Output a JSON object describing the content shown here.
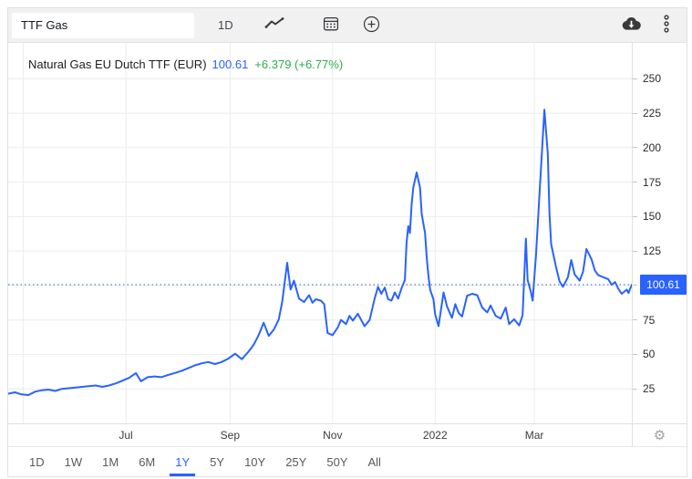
{
  "colors": {
    "accent_blue": "#2962ff",
    "positive_green": "#2eae49",
    "grid": "#ececec",
    "toolbar_bg": "#f1f1f1",
    "border": "#e0e0e0"
  },
  "toolbar": {
    "symbol_value": "TTF Gas",
    "interval_label": "1D",
    "icons": [
      "line-chart",
      "calendar",
      "plus-circle",
      "cloud-download",
      "kebab-menu"
    ]
  },
  "legend": {
    "title": "Natural Gas EU Dutch TTF (EUR)",
    "price": "100.61",
    "change": "+6.379 (+6.77%)"
  },
  "y_axis": {
    "last_price_label": "100.61",
    "tick_labels": [
      "25",
      "50",
      "75",
      "100",
      "125",
      "150",
      "175",
      "200",
      "225",
      "250"
    ]
  },
  "x_axis": {
    "tick_labels": [
      "Jul",
      "Sep",
      "Nov",
      "2022",
      "Mar"
    ]
  },
  "range_selector": {
    "options": [
      "1D",
      "1W",
      "1M",
      "6M",
      "1Y",
      "5Y",
      "10Y",
      "25Y",
      "50Y",
      "All"
    ],
    "active": "1Y"
  },
  "chart_data": {
    "type": "line",
    "title": "Natural Gas EU Dutch TTF (EUR)",
    "last_price": 100.61,
    "change": 6.379,
    "change_pct": 6.77,
    "x_domain": [
      "2021-04-22",
      "2022-04-28"
    ],
    "ylim": [
      0,
      276
    ],
    "y_grid": [
      25,
      50,
      75,
      100,
      125,
      150,
      175,
      200,
      225,
      250
    ],
    "x_ticks": [
      {
        "label": "",
        "date": "2021-05-01"
      },
      {
        "label": "Jul",
        "date": "2021-07-01"
      },
      {
        "label": "Sep",
        "date": "2021-09-01"
      },
      {
        "label": "Nov",
        "date": "2021-11-01"
      },
      {
        "label": "2022",
        "date": "2022-01-01"
      },
      {
        "label": "Mar",
        "date": "2022-03-01"
      }
    ],
    "grid": true,
    "legend_position": "top-left",
    "series": [
      {
        "name": "Natural Gas EU Dutch TTF (EUR)",
        "color": "#2962ff",
        "points": [
          [
            "2021-04-22",
            21.5
          ],
          [
            "2021-04-26",
            22.5
          ],
          [
            "2021-04-30",
            21.0
          ],
          [
            "2021-05-04",
            20.5
          ],
          [
            "2021-05-08",
            23.0
          ],
          [
            "2021-05-12",
            24.0
          ],
          [
            "2021-05-16",
            24.5
          ],
          [
            "2021-05-20",
            23.5
          ],
          [
            "2021-05-24",
            25.0
          ],
          [
            "2021-05-28",
            25.5
          ],
          [
            "2021-06-01",
            26.0
          ],
          [
            "2021-06-05",
            26.5
          ],
          [
            "2021-06-09",
            27.0
          ],
          [
            "2021-06-13",
            27.5
          ],
          [
            "2021-06-17",
            26.5
          ],
          [
            "2021-06-21",
            27.5
          ],
          [
            "2021-06-25",
            29.0
          ],
          [
            "2021-06-29",
            31.0
          ],
          [
            "2021-07-03",
            33.0
          ],
          [
            "2021-07-07",
            36.5
          ],
          [
            "2021-07-10",
            30.5
          ],
          [
            "2021-07-14",
            33.5
          ],
          [
            "2021-07-18",
            34.0
          ],
          [
            "2021-07-22",
            33.5
          ],
          [
            "2021-07-26",
            35.0
          ],
          [
            "2021-07-30",
            36.5
          ],
          [
            "2021-08-03",
            38.0
          ],
          [
            "2021-08-07",
            40.0
          ],
          [
            "2021-08-11",
            42.0
          ],
          [
            "2021-08-15",
            43.5
          ],
          [
            "2021-08-19",
            44.5
          ],
          [
            "2021-08-23",
            43.0
          ],
          [
            "2021-08-27",
            44.5
          ],
          [
            "2021-08-31",
            47.0
          ],
          [
            "2021-09-04",
            50.5
          ],
          [
            "2021-09-08",
            46.5
          ],
          [
            "2021-09-12",
            52.0
          ],
          [
            "2021-09-15",
            57.0
          ],
          [
            "2021-09-18",
            64.0
          ],
          [
            "2021-09-21",
            73.0
          ],
          [
            "2021-09-24",
            63.5
          ],
          [
            "2021-09-27",
            68.0
          ],
          [
            "2021-09-30",
            75.5
          ],
          [
            "2021-10-02",
            88.0
          ],
          [
            "2021-10-05",
            116.5
          ],
          [
            "2021-10-07",
            97.0
          ],
          [
            "2021-10-09",
            103.5
          ],
          [
            "2021-10-12",
            90.5
          ],
          [
            "2021-10-15",
            88.0
          ],
          [
            "2021-10-18",
            93.0
          ],
          [
            "2021-10-20",
            87.5
          ],
          [
            "2021-10-22",
            90.0
          ],
          [
            "2021-10-25",
            89.0
          ],
          [
            "2021-10-27",
            86.5
          ],
          [
            "2021-10-29",
            65.5
          ],
          [
            "2021-11-01",
            64.0
          ],
          [
            "2021-11-04",
            69.5
          ],
          [
            "2021-11-06",
            75.0
          ],
          [
            "2021-11-09",
            72.0
          ],
          [
            "2021-11-11",
            78.0
          ],
          [
            "2021-11-13",
            74.5
          ],
          [
            "2021-11-16",
            79.5
          ],
          [
            "2021-11-18",
            75.0
          ],
          [
            "2021-11-20",
            70.5
          ],
          [
            "2021-11-23",
            75.0
          ],
          [
            "2021-11-26",
            90.5
          ],
          [
            "2021-11-28",
            99.0
          ],
          [
            "2021-11-30",
            94.0
          ],
          [
            "2021-12-02",
            98.5
          ],
          [
            "2021-12-04",
            90.0
          ],
          [
            "2021-12-06",
            89.0
          ],
          [
            "2021-12-08",
            95.0
          ],
          [
            "2021-12-10",
            90.5
          ],
          [
            "2021-12-12",
            98.0
          ],
          [
            "2021-12-14",
            104.0
          ],
          [
            "2021-12-15",
            131.0
          ],
          [
            "2021-12-16",
            143.0
          ],
          [
            "2021-12-17",
            138.0
          ],
          [
            "2021-12-18",
            159.0
          ],
          [
            "2021-12-19",
            171.0
          ],
          [
            "2021-12-21",
            182.0
          ],
          [
            "2021-12-23",
            171.0
          ],
          [
            "2021-12-24",
            152.0
          ],
          [
            "2021-12-26",
            138.0
          ],
          [
            "2021-12-27",
            120.0
          ],
          [
            "2021-12-28",
            107.0
          ],
          [
            "2021-12-29",
            97.0
          ],
          [
            "2021-12-31",
            90.0
          ],
          [
            "2022-01-01",
            79.0
          ],
          [
            "2022-01-03",
            70.5
          ],
          [
            "2022-01-06",
            95.0
          ],
          [
            "2022-01-08",
            85.0
          ],
          [
            "2022-01-11",
            76.5
          ],
          [
            "2022-01-13",
            86.5
          ],
          [
            "2022-01-15",
            80.0
          ],
          [
            "2022-01-17",
            77.5
          ],
          [
            "2022-01-20",
            92.5
          ],
          [
            "2022-01-23",
            94.0
          ],
          [
            "2022-01-26",
            93.0
          ],
          [
            "2022-01-29",
            84.0
          ],
          [
            "2022-02-01",
            80.5
          ],
          [
            "2022-02-03",
            85.5
          ],
          [
            "2022-02-06",
            78.0
          ],
          [
            "2022-02-09",
            76.0
          ],
          [
            "2022-02-12",
            84.0
          ],
          [
            "2022-02-14",
            72.0
          ],
          [
            "2022-02-17",
            75.5
          ],
          [
            "2022-02-20",
            71.0
          ],
          [
            "2022-02-22",
            78.5
          ],
          [
            "2022-02-24",
            134.0
          ],
          [
            "2022-02-25",
            104.0
          ],
          [
            "2022-02-27",
            95.0
          ],
          [
            "2022-02-28",
            89.0
          ],
          [
            "2022-03-02",
            122.0
          ],
          [
            "2022-03-04",
            165.0
          ],
          [
            "2022-03-07",
            227.5
          ],
          [
            "2022-03-09",
            196.0
          ],
          [
            "2022-03-10",
            152.0
          ],
          [
            "2022-03-11",
            130.0
          ],
          [
            "2022-03-14",
            113.0
          ],
          [
            "2022-03-16",
            103.0
          ],
          [
            "2022-03-18",
            99.0
          ],
          [
            "2022-03-21",
            106.0
          ],
          [
            "2022-03-23",
            118.5
          ],
          [
            "2022-03-25",
            108.0
          ],
          [
            "2022-03-28",
            103.5
          ],
          [
            "2022-03-30",
            110.0
          ],
          [
            "2022-04-01",
            126.5
          ],
          [
            "2022-04-04",
            119.0
          ],
          [
            "2022-04-06",
            111.0
          ],
          [
            "2022-04-08",
            107.5
          ],
          [
            "2022-04-11",
            106.0
          ],
          [
            "2022-04-14",
            104.5
          ],
          [
            "2022-04-16",
            100.5
          ],
          [
            "2022-04-18",
            102.5
          ],
          [
            "2022-04-20",
            97.5
          ],
          [
            "2022-04-22",
            94.0
          ],
          [
            "2022-04-25",
            97.0
          ],
          [
            "2022-04-26",
            94.5
          ],
          [
            "2022-04-28",
            100.61
          ]
        ]
      }
    ]
  }
}
